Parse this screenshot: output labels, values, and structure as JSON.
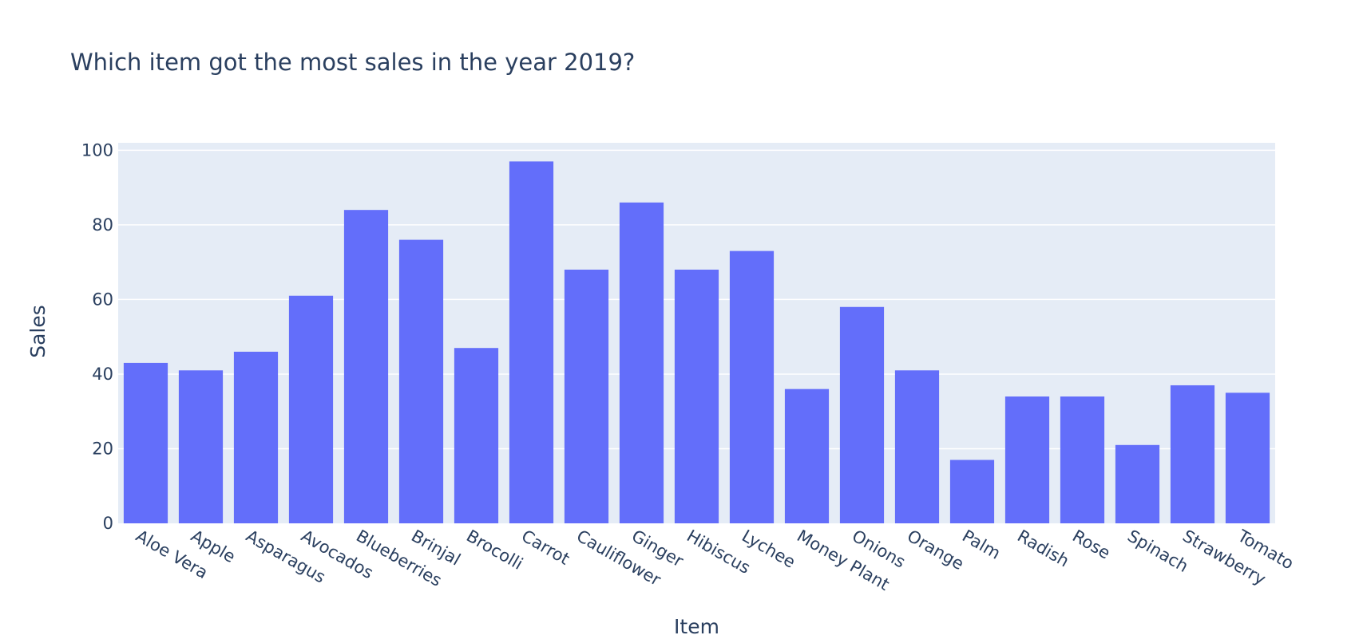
{
  "chart_data": {
    "type": "bar",
    "title": "Which item got the most sales in the year 2019?",
    "xlabel": "Item",
    "ylabel": "Sales",
    "categories": [
      "Aloe Vera",
      "Apple",
      "Asparagus",
      "Avocados",
      "Blueberries",
      "Brinjal",
      "Brocolli",
      "Carrot",
      "Cauliflower",
      "Ginger",
      "Hibiscus",
      "Lychee",
      "Money Plant",
      "Onions",
      "Orange",
      "Palm",
      "Radish",
      "Rose",
      "Spinach",
      "Strawberry",
      "Tomato"
    ],
    "values": [
      43,
      41,
      46,
      61,
      84,
      76,
      47,
      97,
      68,
      86,
      68,
      73,
      36,
      58,
      41,
      17,
      34,
      34,
      21,
      37,
      35
    ],
    "ylim": [
      0,
      102
    ],
    "yticks": [
      0,
      20,
      40,
      60,
      80,
      100
    ],
    "grid": true,
    "legend": "none",
    "colors": {
      "bar": "#636efa",
      "plot_bg": "#e5ecf6",
      "grid": "#ffffff",
      "text": "#2a3f5f"
    }
  }
}
